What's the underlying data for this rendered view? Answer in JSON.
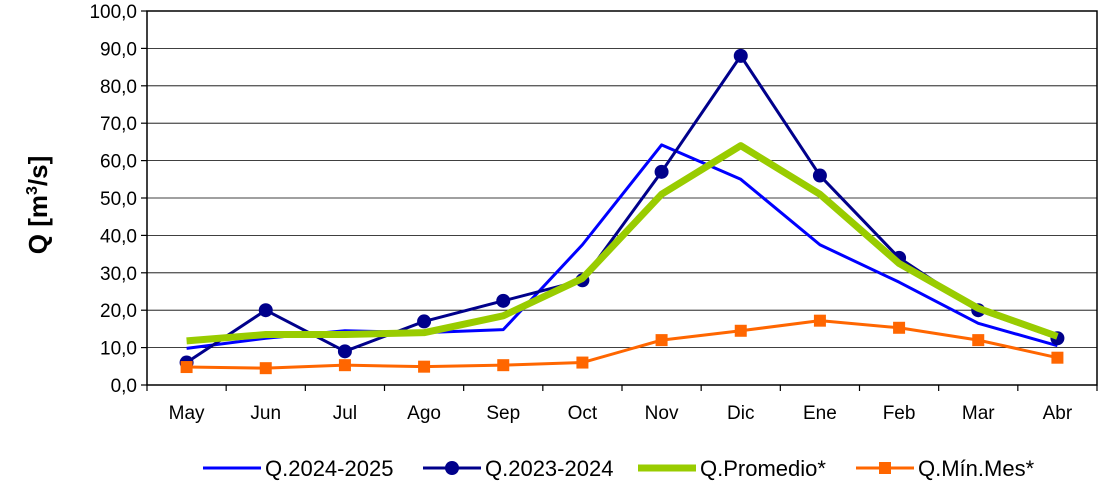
{
  "chart_data": {
    "type": "line",
    "title": "",
    "xlabel": "",
    "ylabel": "Q [m",
    "ylabel_sup": "3",
    "ylabel_end": "/s]",
    "ylim": [
      0,
      100
    ],
    "ytick_step": 10,
    "ytick_labels": [
      "0,0",
      "10,0",
      "20,0",
      "30,0",
      "40,0",
      "50,0",
      "60,0",
      "70,0",
      "80,0",
      "90,0",
      "100,0"
    ],
    "grid": true,
    "legend_position": "bottom",
    "categories": [
      "May",
      "Jun",
      "Jul",
      "Ago",
      "Sep",
      "Oct",
      "Nov",
      "Dic",
      "Ene",
      "Feb",
      "Mar",
      "Abr"
    ],
    "series": [
      {
        "name": "Q.2024-2025",
        "color": "#0000ff",
        "marker": "none",
        "width": 3,
        "values": [
          9.8,
          12.5,
          14.5,
          14.0,
          14.8,
          37.5,
          64.2,
          55.0,
          37.5,
          27.5,
          16.5,
          10.5
        ]
      },
      {
        "name": "Q.2023-2024",
        "color": "#00008b",
        "marker": "circle",
        "width": 3,
        "values": [
          6.0,
          20.0,
          9.0,
          17.0,
          22.5,
          28.0,
          57.0,
          88.0,
          56.0,
          34.0,
          20.0,
          12.5
        ]
      },
      {
        "name": "Q.Promedio*",
        "color": "#99cc00",
        "marker": "none",
        "width": 7,
        "values": [
          11.8,
          13.5,
          13.5,
          14.0,
          18.5,
          28.5,
          51.0,
          64.0,
          51.0,
          32.5,
          20.5,
          13.0
        ]
      },
      {
        "name": "Q.Mín.Mes*",
        "color": "#ff6600",
        "marker": "square",
        "width": 3,
        "values": [
          4.8,
          4.5,
          5.3,
          4.9,
          5.3,
          6.0,
          12.0,
          14.5,
          17.2,
          15.3,
          12.0,
          7.3
        ]
      }
    ]
  }
}
